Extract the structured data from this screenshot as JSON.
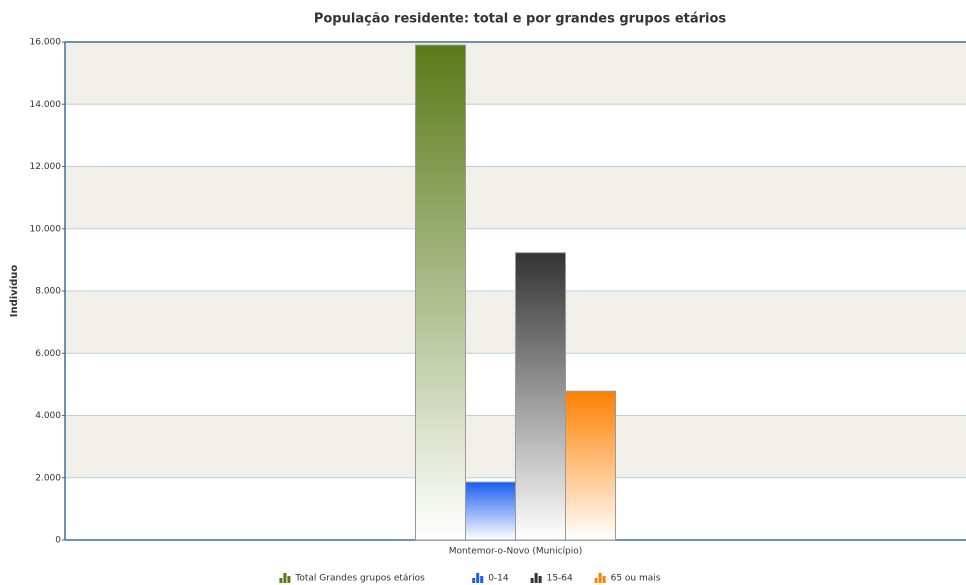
{
  "chart_data": {
    "type": "bar",
    "title": "População residente: total e por grandes grupos etários",
    "y_label": "Indivíduo",
    "categories": [
      "Montemor-o-Novo (Município)"
    ],
    "series": [
      {
        "name": "Total Grandes grupos etários",
        "color": "#5a7a17",
        "values": [
          15900
        ]
      },
      {
        "name": "0-14",
        "color": "#1a5ef0",
        "values": [
          1860
        ]
      },
      {
        "name": "15-64",
        "color": "#333333",
        "values": [
          9230
        ]
      },
      {
        "name": "65 ou mais",
        "color": "#ff8000",
        "values": [
          4780
        ]
      }
    ],
    "ylim": [
      0,
      16000
    ],
    "yticks": [
      0,
      {
        "value": 2000,
        "label": "2.000"
      },
      {
        "value": 4000,
        "label": "4.000"
      },
      {
        "value": 6000,
        "label": "6.000"
      },
      {
        "value": 8000,
        "label": "8.000"
      },
      {
        "value": 10000,
        "label": "10.000"
      },
      {
        "value": 12000,
        "label": "12.000"
      },
      {
        "value": 14000,
        "label": "14.000"
      },
      {
        "value": 16000,
        "label": "16.000"
      }
    ],
    "grid": true,
    "legend": "bottom"
  }
}
